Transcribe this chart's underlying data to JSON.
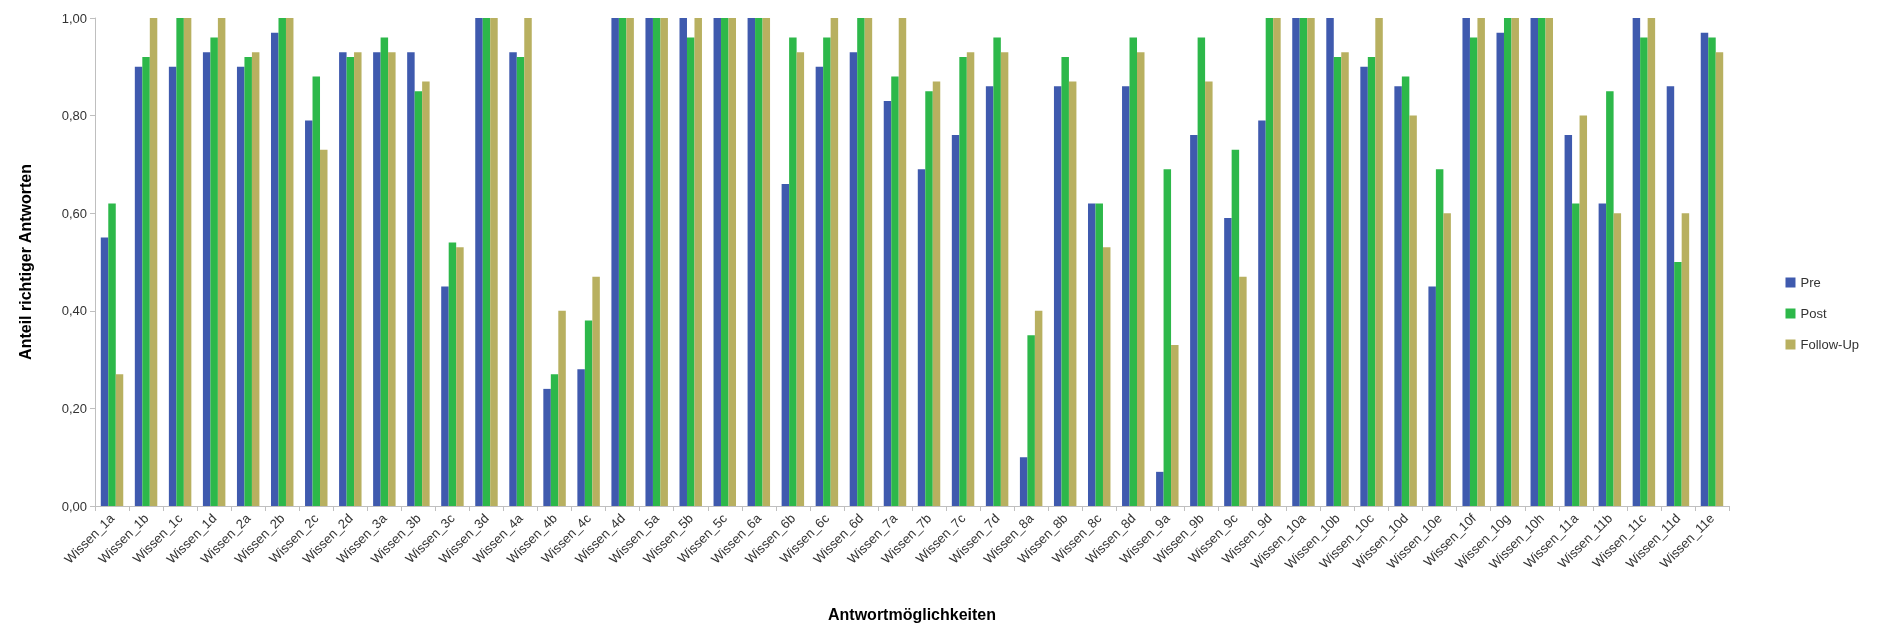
{
  "chart_data": {
    "type": "bar",
    "xlabel": "Antwortmöglichkeiten",
    "ylabel": "Anteil richtiger Antworten",
    "categories": [
      "Wissen_1a",
      "Wissen_1b",
      "Wissen_1c",
      "Wissen_1d",
      "Wissen_2a",
      "Wissen_2b",
      "Wissen_2c",
      "Wissen_2d",
      "Wissen_3a",
      "Wissen_3b",
      "Wissen_3c",
      "Wissen_3d",
      "Wissen_4a",
      "Wissen_4b",
      "Wissen_4c",
      "Wissen_4d",
      "Wissen_5a",
      "Wissen_5b",
      "Wissen_5c",
      "Wissen_6a",
      "Wissen_6b",
      "Wissen_6c",
      "Wissen_6d",
      "Wissen_7a",
      "Wissen_7b",
      "Wissen_7c",
      "Wissen_7d",
      "Wissen_8a",
      "Wissen_8b",
      "Wissen_8c",
      "Wissen_8d",
      "Wissen_9a",
      "Wissen_9b",
      "Wissen_9c",
      "Wissen_9d",
      "Wissen_10a",
      "Wissen_10b",
      "Wissen_10c",
      "Wissen_10d",
      "Wissen_10e",
      "Wissen_10f",
      "Wissen_10g",
      "Wissen_10h",
      "Wissen_11a",
      "Wissen_11b",
      "Wissen_11c",
      "Wissen_11d",
      "Wissen_11e"
    ],
    "series": [
      {
        "name": "Pre",
        "color": "#3f5aae",
        "values": [
          0.55,
          0.9,
          0.9,
          0.93,
          0.9,
          0.97,
          0.79,
          0.93,
          0.93,
          0.93,
          0.45,
          1,
          0.93,
          0.24,
          0.28,
          1,
          1,
          1,
          1,
          1,
          0.66,
          0.9,
          0.93,
          0.83,
          0.69,
          0.76,
          0.86,
          0.1,
          0.86,
          0.62,
          0.86,
          0.07,
          0.76,
          0.59,
          0.79,
          1,
          1,
          0.9,
          0.86,
          0.45,
          1,
          0.97,
          1,
          0.76,
          0.62,
          1,
          0.86,
          0.97
        ]
      },
      {
        "name": "Post",
        "color": "#2db84a",
        "values": [
          0.62,
          0.92,
          1,
          0.96,
          0.92,
          1,
          0.88,
          0.92,
          0.96,
          0.85,
          0.54,
          1,
          0.92,
          0.27,
          0.38,
          1,
          1,
          0.96,
          1,
          1,
          0.96,
          0.96,
          1,
          0.88,
          0.85,
          0.92,
          0.96,
          0.35,
          0.92,
          0.62,
          0.96,
          0.69,
          0.96,
          0.73,
          1,
          1,
          0.92,
          0.92,
          0.88,
          0.69,
          0.96,
          1,
          1,
          0.62,
          0.85,
          0.96,
          0.5,
          0.96
        ]
      },
      {
        "name": "Follow-Up",
        "color": "#b8b060",
        "values": [
          0.27,
          1,
          1,
          1,
          0.93,
          1,
          0.73,
          0.93,
          0.93,
          0.87,
          0.53,
          1,
          1,
          0.4,
          0.47,
          1,
          1,
          1,
          1,
          1,
          0.93,
          1,
          1,
          1,
          0.87,
          0.93,
          0.93,
          0.4,
          0.87,
          0.53,
          0.93,
          0.33,
          0.87,
          0.47,
          1,
          1,
          0.93,
          1,
          0.8,
          0.6,
          1,
          1,
          1,
          0.8,
          0.6,
          1,
          0.6,
          0.93
        ]
      }
    ],
    "ylim": [
      0,
      1
    ],
    "yticks": [
      {
        "value": 0,
        "label": "0,00"
      },
      {
        "value": 0.2,
        "label": "0,20"
      },
      {
        "value": 0.4,
        "label": "0,40"
      },
      {
        "value": 0.6,
        "label": "0,60"
      },
      {
        "value": 0.8,
        "label": "0,80"
      },
      {
        "value": 1,
        "label": "1,00"
      }
    ],
    "grid": false,
    "legend": "right"
  }
}
